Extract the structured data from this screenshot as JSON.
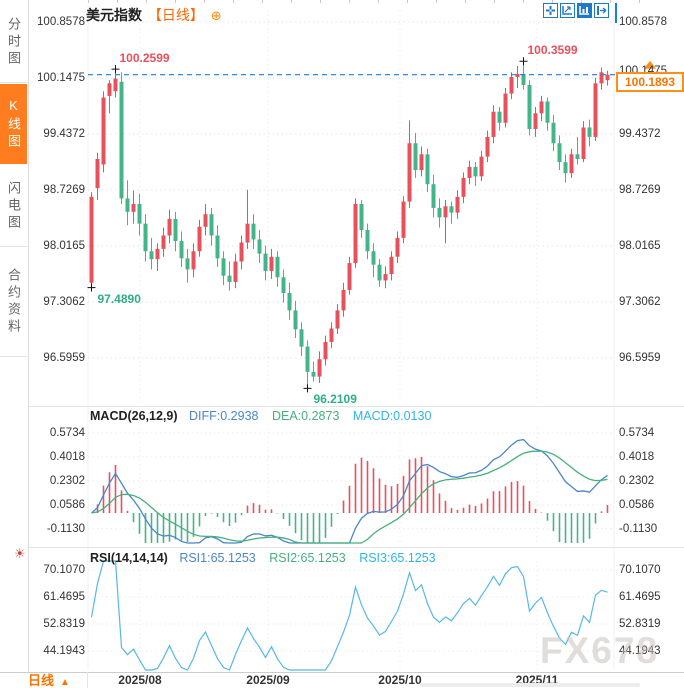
{
  "sidebar": {
    "tabs": [
      {
        "label": "分时图",
        "active": false
      },
      {
        "label": "K线图",
        "active": true
      },
      {
        "label": "闪电图",
        "active": false
      },
      {
        "label": "合约资料",
        "active": false
      }
    ]
  },
  "header": {
    "symbol": "美元指数",
    "period_tag": "【日线】",
    "add_icon": "⊕"
  },
  "toolbar": {
    "icons": [
      "crosshair",
      "axis-scale",
      "kline-panel",
      "export"
    ]
  },
  "macd_header": {
    "name": "MACD(26,12,9)",
    "diff": "DIFF:0.2938",
    "dea": "DEA:0.2873",
    "macd": "MACD:0.0130"
  },
  "rsi_header": {
    "name": "RSI(14,14,14)",
    "rsi1": "RSI1:65.1253",
    "rsi2": "RSI2:65.1253",
    "rsi3": "RSI3:65.1253"
  },
  "annotations": {
    "high1": "100.2599",
    "low1": "97.4890",
    "low2": "96.2109",
    "high2": "100.3599",
    "current": "100.1893"
  },
  "bottom": {
    "period": "日线",
    "arrow": "▲"
  },
  "watermark": "FX678",
  "sun_icon": "☀",
  "colors": {
    "up": "#e8505b",
    "down": "#43b588",
    "accent_orange": "#ff7d1f",
    "current_line_blue": "#1a7ee0",
    "diff_blue": "#4a86c8",
    "dea_green": "#47b07a",
    "rsi_cyan": "#56b8e8",
    "grid": "#e4e4e4"
  },
  "chart_data": {
    "type": "candlestick",
    "title": "美元指数 日线 (US Dollar Index, daily)",
    "price_axis_ticks": [
      100.8578,
      100.1475,
      99.4372,
      98.7269,
      98.0165,
      97.3062,
      96.5959
    ],
    "x_ticks": [
      "2025/08",
      "2025/09",
      "2025/10",
      "2025/11"
    ],
    "current_price": 100.1893,
    "grid": true,
    "marked_points": [
      {
        "label": "100.2599",
        "type": "high",
        "index": 4
      },
      {
        "label": "97.4890",
        "type": "low",
        "index": 0
      },
      {
        "label": "96.2109",
        "type": "low",
        "index": 36
      },
      {
        "label": "100.3599",
        "type": "high",
        "index": 72
      }
    ],
    "candles_ohlc": [
      [
        97.55,
        98.7,
        97.489,
        98.64
      ],
      [
        98.75,
        99.2,
        98.6,
        99.12
      ],
      [
        99.05,
        99.98,
        98.95,
        99.9
      ],
      [
        99.92,
        100.12,
        99.7,
        100.08
      ],
      [
        99.98,
        100.2599,
        99.9,
        100.14
      ],
      [
        100.1,
        100.22,
        98.55,
        98.62
      ],
      [
        98.62,
        98.85,
        98.28,
        98.45
      ],
      [
        98.45,
        98.72,
        98.3,
        98.55
      ],
      [
        98.55,
        98.68,
        98.15,
        98.3
      ],
      [
        98.3,
        98.42,
        97.82,
        97.95
      ],
      [
        97.95,
        98.12,
        97.72,
        97.85
      ],
      [
        97.85,
        98.05,
        97.7,
        97.98
      ],
      [
        97.98,
        98.25,
        97.88,
        98.15
      ],
      [
        98.15,
        98.48,
        98.05,
        98.36
      ],
      [
        98.36,
        98.45,
        97.95,
        98.08
      ],
      [
        98.08,
        98.2,
        97.75,
        97.86
      ],
      [
        97.86,
        97.98,
        97.55,
        97.72
      ],
      [
        97.72,
        98.05,
        97.62,
        97.95
      ],
      [
        97.95,
        98.35,
        97.88,
        98.26
      ],
      [
        98.26,
        98.55,
        98.15,
        98.42
      ],
      [
        98.42,
        98.5,
        98.02,
        98.15
      ],
      [
        98.15,
        98.28,
        97.75,
        97.86
      ],
      [
        97.86,
        97.95,
        97.52,
        97.64
      ],
      [
        97.64,
        97.82,
        97.45,
        97.56
      ],
      [
        97.56,
        97.92,
        97.48,
        97.82
      ],
      [
        97.82,
        98.15,
        97.72,
        98.06
      ],
      [
        98.06,
        98.73,
        97.98,
        98.3
      ],
      [
        98.3,
        98.42,
        97.98,
        98.1
      ],
      [
        98.1,
        98.22,
        97.8,
        97.92
      ],
      [
        97.92,
        98.02,
        97.58,
        97.7
      ],
      [
        97.7,
        97.98,
        97.6,
        97.88
      ],
      [
        97.88,
        97.95,
        97.5,
        97.62
      ],
      [
        97.62,
        97.72,
        97.3,
        97.42
      ],
      [
        97.42,
        97.55,
        97.08,
        97.2
      ],
      [
        97.2,
        97.32,
        96.85,
        96.96
      ],
      [
        96.96,
        97.05,
        96.62,
        96.74
      ],
      [
        96.74,
        96.82,
        96.2109,
        96.42
      ],
      [
        96.42,
        96.55,
        96.3,
        96.36
      ],
      [
        96.36,
        96.68,
        96.28,
        96.58
      ],
      [
        96.58,
        96.88,
        96.5,
        96.8
      ],
      [
        96.8,
        97.05,
        96.72,
        96.97
      ],
      [
        96.97,
        97.28,
        96.9,
        97.2
      ],
      [
        97.2,
        97.55,
        97.12,
        97.46
      ],
      [
        97.46,
        97.88,
        97.4,
        97.8
      ],
      [
        97.8,
        98.62,
        97.74,
        98.55
      ],
      [
        98.55,
        98.6,
        98.12,
        98.22
      ],
      [
        98.22,
        98.3,
        97.85,
        97.95
      ],
      [
        97.95,
        98.05,
        97.62,
        97.78
      ],
      [
        97.78,
        97.85,
        97.5,
        97.58
      ],
      [
        97.58,
        97.76,
        97.48,
        97.66
      ],
      [
        97.66,
        97.95,
        97.58,
        97.88
      ],
      [
        97.88,
        98.2,
        97.8,
        98.12
      ],
      [
        98.12,
        98.65,
        98.05,
        98.58
      ],
      [
        98.58,
        99.61,
        98.5,
        99.32
      ],
      [
        99.32,
        99.45,
        98.88,
        98.98
      ],
      [
        98.98,
        99.28,
        98.9,
        99.18
      ],
      [
        99.18,
        99.25,
        98.7,
        98.8
      ],
      [
        98.8,
        98.92,
        98.38,
        98.5
      ],
      [
        98.5,
        98.62,
        98.25,
        98.38
      ],
      [
        98.38,
        98.6,
        98.05,
        98.52
      ],
      [
        98.52,
        98.58,
        98.3,
        98.44
      ],
      [
        98.44,
        98.72,
        98.36,
        98.64
      ],
      [
        98.64,
        98.95,
        98.56,
        98.88
      ],
      [
        98.88,
        99.1,
        98.8,
        99.02
      ],
      [
        99.02,
        99.08,
        98.78,
        98.9
      ],
      [
        98.9,
        99.22,
        98.84,
        99.15
      ],
      [
        99.15,
        99.48,
        99.08,
        99.4
      ],
      [
        99.4,
        99.8,
        99.32,
        99.72
      ],
      [
        99.72,
        99.78,
        99.48,
        99.58
      ],
      [
        99.58,
        100.02,
        99.52,
        99.95
      ],
      [
        99.95,
        100.22,
        99.88,
        100.16
      ],
      [
        100.16,
        100.3,
        100.02,
        100.2
      ],
      [
        100.2,
        100.3599,
        100.0,
        100.06
      ],
      [
        100.06,
        100.12,
        99.42,
        99.5
      ],
      [
        99.5,
        99.78,
        99.4,
        99.7
      ],
      [
        99.7,
        99.92,
        99.6,
        99.85
      ],
      [
        99.85,
        99.9,
        99.48,
        99.58
      ],
      [
        99.58,
        99.68,
        99.22,
        99.32
      ],
      [
        99.32,
        99.42,
        98.98,
        99.08
      ],
      [
        99.08,
        99.18,
        98.82,
        98.94
      ],
      [
        98.94,
        99.25,
        98.88,
        99.18
      ],
      [
        99.18,
        99.4,
        99.05,
        99.12
      ],
      [
        99.12,
        99.6,
        99.08,
        99.52
      ],
      [
        99.52,
        99.62,
        99.28,
        99.4
      ],
      [
        99.4,
        100.15,
        99.35,
        100.08
      ],
      [
        100.08,
        100.28,
        100.0,
        100.22
      ],
      [
        100.12,
        100.24,
        100.05,
        100.1893
      ]
    ],
    "indicators": {
      "macd": {
        "params": [
          26,
          12,
          9
        ],
        "diff": 0.2938,
        "dea": 0.2873,
        "macd": 0.013,
        "axis_ticks": [
          0.5734,
          0.4018,
          0.2302,
          0.0586,
          -0.113
        ]
      },
      "rsi": {
        "params": [
          14,
          14,
          14
        ],
        "rsi1": 65.1253,
        "rsi2": 65.1253,
        "rsi3": 65.1253,
        "axis_ticks": [
          70.107,
          61.4695,
          52.8319,
          44.1943
        ]
      }
    }
  }
}
